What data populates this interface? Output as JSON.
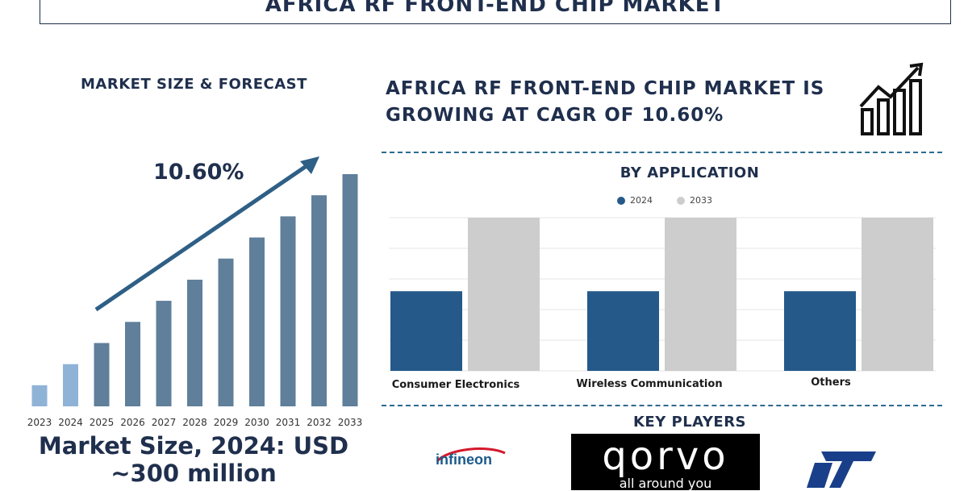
{
  "header": {
    "title": "AFRICA RF FRONT-END CHIP MARKET"
  },
  "forecast": {
    "title": "MARKET SIZE & FORECAST",
    "cagr_label": "10.60%",
    "market_size_text": "Market Size, 2024: USD ~300 million"
  },
  "headline": {
    "text": "AFRICA RF FRONT-END CHIP MARKET IS GROWING AT CAGR OF 10.60%"
  },
  "application": {
    "title": "BY APPLICATION"
  },
  "key_players": {
    "title": "KEY PLAYERS",
    "logos": [
      {
        "name": "infineon-logo",
        "text": "infineon"
      },
      {
        "name": "qorvo-logo",
        "text": "qorvo",
        "tagline": "all around you"
      },
      {
        "name": "st-logo",
        "text": "ST"
      }
    ]
  },
  "colors": {
    "dark_navy": "#1f2f4d",
    "bar_blue": "#24598a",
    "bar_grey": "#cdcdcd",
    "forecast_bar": "#5f7f9b",
    "early_bar": "#8fb3d6"
  },
  "chart_data": [
    {
      "type": "bar",
      "title": "MARKET SIZE & FORECAST",
      "categories": [
        "2023",
        "2024",
        "2025",
        "2026",
        "2027",
        "2028",
        "2029",
        "2030",
        "2031",
        "2032",
        "2033"
      ],
      "values": [
        1.0,
        2.0,
        3.0,
        4.0,
        5.0,
        6.0,
        7.0,
        8.0,
        9.0,
        10.0,
        11.0
      ],
      "annotation": "10.60%",
      "grid": false,
      "legend": "none"
    },
    {
      "type": "bar",
      "title": "BY APPLICATION",
      "categories": [
        "Consumer Electronics",
        "Wireless Communication",
        "Others"
      ],
      "series": [
        {
          "name": "2024",
          "values": [
            0.52,
            0.52,
            0.52
          ]
        },
        {
          "name": "2033",
          "values": [
            1.0,
            1.0,
            1.0
          ]
        }
      ],
      "ylim": [
        0,
        1.0
      ],
      "grid": true,
      "legend": "top-center"
    }
  ]
}
